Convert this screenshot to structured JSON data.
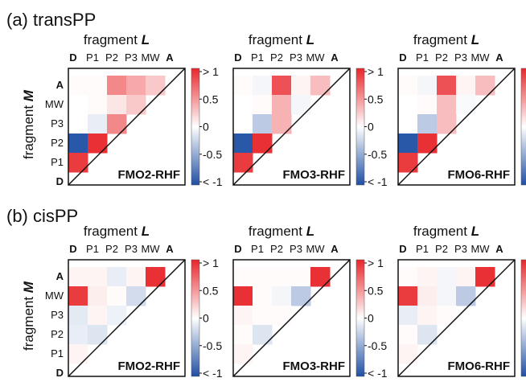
{
  "figure": {
    "section_a": "(a) transPP",
    "section_b": "(b) cisPP"
  },
  "matrix_labels": {
    "x_title": "fragment",
    "x_title_sym": "L",
    "y_title": "fragment",
    "y_title_sym": "M",
    "x_ticks": [
      "D",
      "P1",
      "P2",
      "P3",
      "MW",
      "A"
    ],
    "y_ticks": [
      "A",
      "MW",
      "P3",
      "P2",
      "P1",
      "D"
    ]
  },
  "colorbar": {
    "ticks": [
      "> 1",
      "0.5",
      "0",
      "-0.5",
      "< -1"
    ],
    "colors": {
      "positive": "#e8262a",
      "negative": "#1f4fa3",
      "zero": "#ffffff"
    }
  },
  "chart_data": [
    {
      "type": "heatmap",
      "panel": "a",
      "title": "FMO2-RHF",
      "x": [
        "D",
        "P1",
        "P2",
        "P3",
        "MW",
        "A"
      ],
      "y": [
        "A",
        "MW",
        "P3",
        "P2",
        "P1",
        "D"
      ],
      "vmin": -1,
      "vmax": 1,
      "values": [
        [
          0.02,
          0.02,
          0.55,
          0.4,
          0.25
        ],
        [
          0.0,
          0.02,
          0.12,
          0.25
        ],
        [
          0.0,
          -0.1,
          0.55
        ],
        [
          -0.95,
          0.95
        ],
        [
          0.9
        ]
      ]
    },
    {
      "type": "heatmap",
      "panel": "a",
      "title": "FMO3-RHF",
      "x": [
        "D",
        "P1",
        "P2",
        "P3",
        "MW",
        "A"
      ],
      "y": [
        "A",
        "MW",
        "P3",
        "P2",
        "P1",
        "D"
      ],
      "vmin": -1,
      "vmax": 1,
      "values": [
        [
          0.02,
          -0.05,
          0.8,
          0.05,
          0.3
        ],
        [
          0.0,
          0.02,
          0.35,
          -0.05
        ],
        [
          0.0,
          -0.3,
          0.35
        ],
        [
          -0.95,
          0.95
        ],
        [
          0.9
        ]
      ]
    },
    {
      "type": "heatmap",
      "panel": "a",
      "title": "FMO6-RHF",
      "x": [
        "D",
        "P1",
        "P2",
        "P3",
        "MW",
        "A"
      ],
      "y": [
        "A",
        "MW",
        "P3",
        "P2",
        "P1",
        "D"
      ],
      "vmin": -1,
      "vmax": 1,
      "values": [
        [
          0.02,
          -0.05,
          0.8,
          0.05,
          0.3
        ],
        [
          0.0,
          0.02,
          0.3,
          -0.03
        ],
        [
          0.0,
          -0.3,
          0.3
        ],
        [
          -0.95,
          0.95
        ],
        [
          0.9
        ]
      ]
    },
    {
      "type": "heatmap",
      "panel": "b",
      "title": "FMO2-RHF",
      "x": [
        "D",
        "P1",
        "P2",
        "P3",
        "MW",
        "A"
      ],
      "y": [
        "A",
        "MW",
        "P3",
        "P2",
        "P1",
        "D"
      ],
      "vmin": -1,
      "vmax": 1,
      "values": [
        [
          0.05,
          0.05,
          -0.1,
          0.05,
          0.95
        ],
        [
          0.9,
          0.08,
          0.02,
          -0.2
        ],
        [
          -0.12,
          0.05,
          -0.08
        ],
        [
          -0.1,
          -0.15
        ],
        [
          0.05
        ]
      ]
    },
    {
      "type": "heatmap",
      "panel": "b",
      "title": "FMO3-RHF",
      "x": [
        "D",
        "P1",
        "P2",
        "P3",
        "MW",
        "A"
      ],
      "y": [
        "A",
        "MW",
        "P3",
        "P2",
        "P1",
        "D"
      ],
      "vmin": -1,
      "vmax": 1,
      "values": [
        [
          0.02,
          0.02,
          0.02,
          0.02,
          0.95
        ],
        [
          0.95,
          0.02,
          -0.05,
          -0.3
        ],
        [
          0.05,
          0.02,
          0.02
        ],
        [
          0.02,
          -0.15
        ],
        [
          0.05
        ]
      ]
    },
    {
      "type": "heatmap",
      "panel": "b",
      "title": "FMO6-RHF",
      "x": [
        "D",
        "P1",
        "P2",
        "P3",
        "MW",
        "A"
      ],
      "y": [
        "A",
        "MW",
        "P3",
        "P2",
        "P1",
        "D"
      ],
      "vmin": -1,
      "vmax": 1,
      "values": [
        [
          0.02,
          0.05,
          -0.05,
          0.05,
          0.95
        ],
        [
          0.9,
          0.08,
          -0.05,
          -0.3
        ],
        [
          -0.1,
          0.05,
          0.02
        ],
        [
          0.02,
          -0.15
        ],
        [
          0.05
        ]
      ]
    }
  ]
}
